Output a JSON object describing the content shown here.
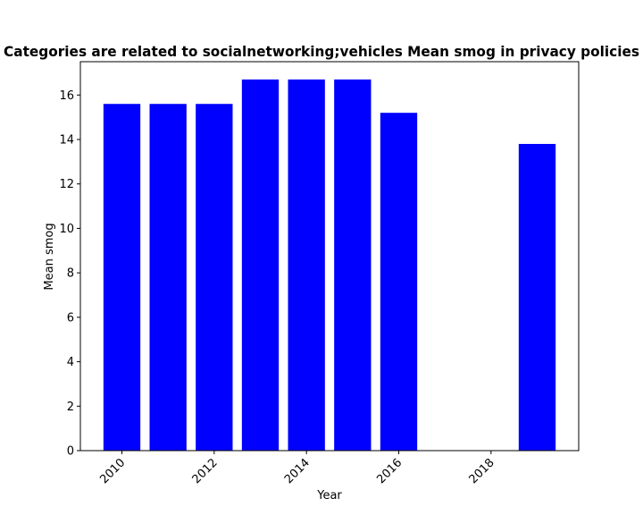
{
  "chart_data": {
    "type": "bar",
    "title": "Categories are related to socialnetworking;vehicles Mean smog in privacy policies",
    "xlabel": "Year",
    "ylabel": "Mean smog",
    "x": [
      2010,
      2011,
      2012,
      2013,
      2014,
      2015,
      2016,
      2019
    ],
    "values": [
      15.6,
      15.6,
      15.6,
      16.7,
      16.7,
      16.7,
      15.2,
      13.8
    ],
    "xlim": [
      2009.1,
      2019.9
    ],
    "ylim": [
      0,
      17.5
    ],
    "xticks": [
      2010,
      2012,
      2014,
      2016,
      2018
    ],
    "yticks": [
      0,
      2,
      4,
      6,
      8,
      10,
      12,
      14,
      16
    ],
    "bar_color": "#0000ff",
    "grid": false,
    "legend": null
  }
}
